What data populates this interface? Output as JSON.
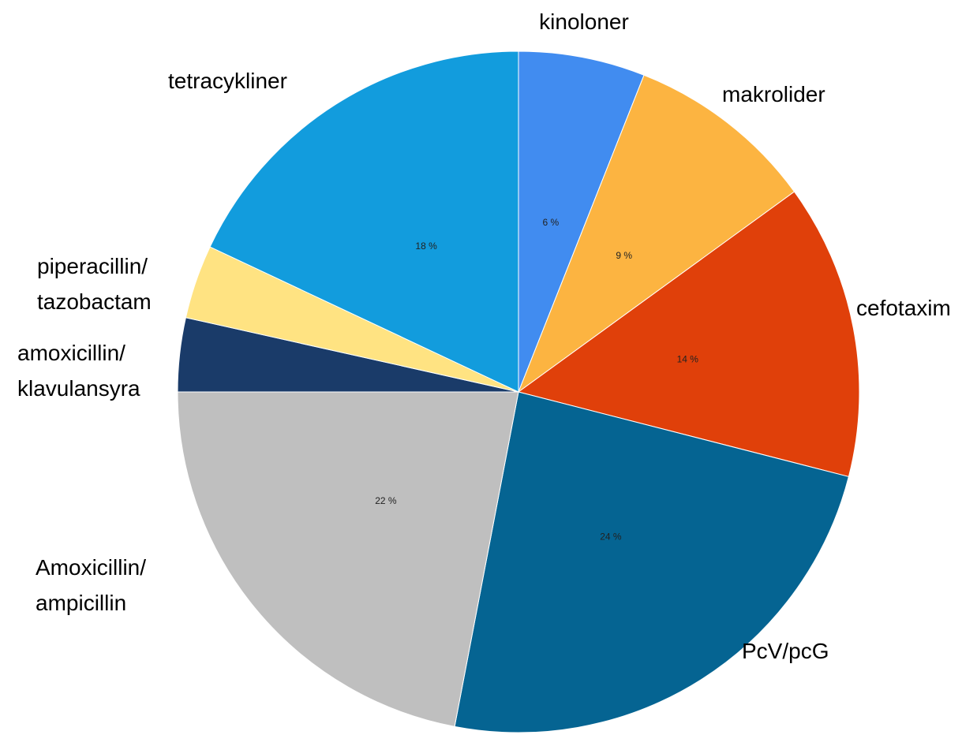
{
  "chart_data": {
    "type": "pie",
    "categories": [
      "kinoloner",
      "makrolider",
      "cefotaxim",
      "PcV/pcG",
      "Amoxicillin/\nampicillin",
      "amoxicillin/\nklavulansyra",
      "piperacillin/\ntazobactam",
      "tetracykliner"
    ],
    "values": [
      6,
      9,
      14,
      24,
      22,
      3.5,
      3.5,
      18
    ],
    "value_labels": [
      "6 %",
      "9 %",
      "14 %",
      "24 %",
      "22 %",
      null,
      null,
      "18 %"
    ],
    "colors": [
      "#418cf0",
      "#fcb441",
      "#e0400a",
      "#056492",
      "#bfbfbf",
      "#1a3b69",
      "#ffe382",
      "#129cdd"
    ]
  }
}
